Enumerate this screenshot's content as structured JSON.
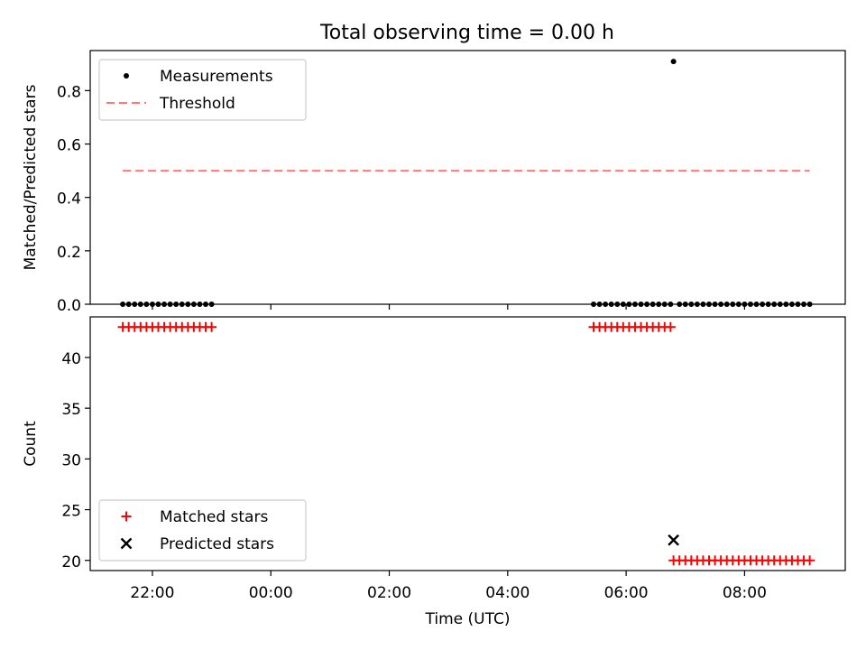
{
  "title": "Total observing time = 0.00 h",
  "chart_data": [
    {
      "type": "scatter",
      "ylabel": "Matched/Predicted stars",
      "xlabel": "",
      "ylim": [
        0,
        0.95
      ],
      "yticks": [
        0.0,
        0.2,
        0.4,
        0.6,
        0.8
      ],
      "ytick_labels": [
        "0.0",
        "0.2",
        "0.4",
        "0.6",
        "0.8"
      ],
      "legend_position": "upper-left",
      "series": [
        {
          "name": "Measurements",
          "color": "#000000",
          "marker": "dot",
          "x": [
            -2.5,
            -2.4,
            -2.3,
            -2.2,
            -2.1,
            -2.0,
            -1.9,
            -1.8,
            -1.7,
            -1.6,
            -1.5,
            -1.4,
            -1.3,
            -1.2,
            -1.1,
            -1.0,
            5.45,
            5.55,
            5.65,
            5.75,
            5.85,
            5.95,
            6.05,
            6.15,
            6.25,
            6.35,
            6.45,
            6.55,
            6.65,
            6.75,
            6.8,
            6.9,
            7.0,
            7.1,
            7.2,
            7.3,
            7.4,
            7.5,
            7.6,
            7.7,
            7.8,
            7.9,
            8.0,
            8.1,
            8.2,
            8.3,
            8.4,
            8.5,
            8.6,
            8.7,
            8.8,
            8.9,
            9.0,
            9.1
          ],
          "y": [
            0,
            0,
            0,
            0,
            0,
            0,
            0,
            0,
            0,
            0,
            0,
            0,
            0,
            0,
            0,
            0,
            0,
            0,
            0,
            0,
            0,
            0,
            0,
            0,
            0,
            0,
            0,
            0,
            0,
            0,
            0.909,
            0,
            0,
            0,
            0,
            0,
            0,
            0,
            0,
            0,
            0,
            0,
            0,
            0,
            0,
            0,
            0,
            0,
            0,
            0,
            0,
            0,
            0,
            0
          ]
        },
        {
          "name": "Threshold",
          "color": "#ff7777",
          "style": "dashed",
          "x": [
            -2.5,
            9.1
          ],
          "y": [
            0.5,
            0.5
          ]
        }
      ]
    },
    {
      "type": "scatter",
      "ylabel": "Count",
      "xlabel": "Time (UTC)",
      "ylim": [
        19,
        44
      ],
      "yticks": [
        20,
        25,
        30,
        35,
        40
      ],
      "ytick_labels": [
        "20",
        "25",
        "30",
        "35",
        "40"
      ],
      "xticks": [
        -2,
        0,
        2,
        4,
        6,
        8
      ],
      "xtick_labels": [
        "22:00",
        "00:00",
        "02:00",
        "04:00",
        "06:00",
        "08:00"
      ],
      "legend_position": "lower-left",
      "series": [
        {
          "name": "Matched stars",
          "color": "#ff0000",
          "marker": "plus",
          "x": [
            -2.5,
            -2.4,
            -2.3,
            -2.2,
            -2.1,
            -2.0,
            -1.9,
            -1.8,
            -1.7,
            -1.6,
            -1.5,
            -1.4,
            -1.3,
            -1.2,
            -1.1,
            -1.0,
            5.45,
            5.55,
            5.65,
            5.75,
            5.85,
            5.95,
            6.05,
            6.15,
            6.25,
            6.35,
            6.45,
            6.55,
            6.65,
            6.75,
            6.8,
            6.9,
            7.0,
            7.1,
            7.2,
            7.3,
            7.4,
            7.5,
            7.6,
            7.7,
            7.8,
            7.9,
            8.0,
            8.1,
            8.2,
            8.3,
            8.4,
            8.5,
            8.6,
            8.7,
            8.8,
            8.9,
            9.0,
            9.1
          ],
          "y": [
            43,
            43,
            43,
            43,
            43,
            43,
            43,
            43,
            43,
            43,
            43,
            43,
            43,
            43,
            43,
            43,
            43,
            43,
            43,
            43,
            43,
            43,
            43,
            43,
            43,
            43,
            43,
            43,
            43,
            43,
            20,
            20,
            20,
            20,
            20,
            20,
            20,
            20,
            20,
            20,
            20,
            20,
            20,
            20,
            20,
            20,
            20,
            20,
            20,
            20,
            20,
            20,
            20,
            20
          ]
        },
        {
          "name": "Predicted stars",
          "color": "#000000",
          "marker": "x",
          "x": [
            6.8
          ],
          "y": [
            22
          ]
        }
      ]
    }
  ]
}
